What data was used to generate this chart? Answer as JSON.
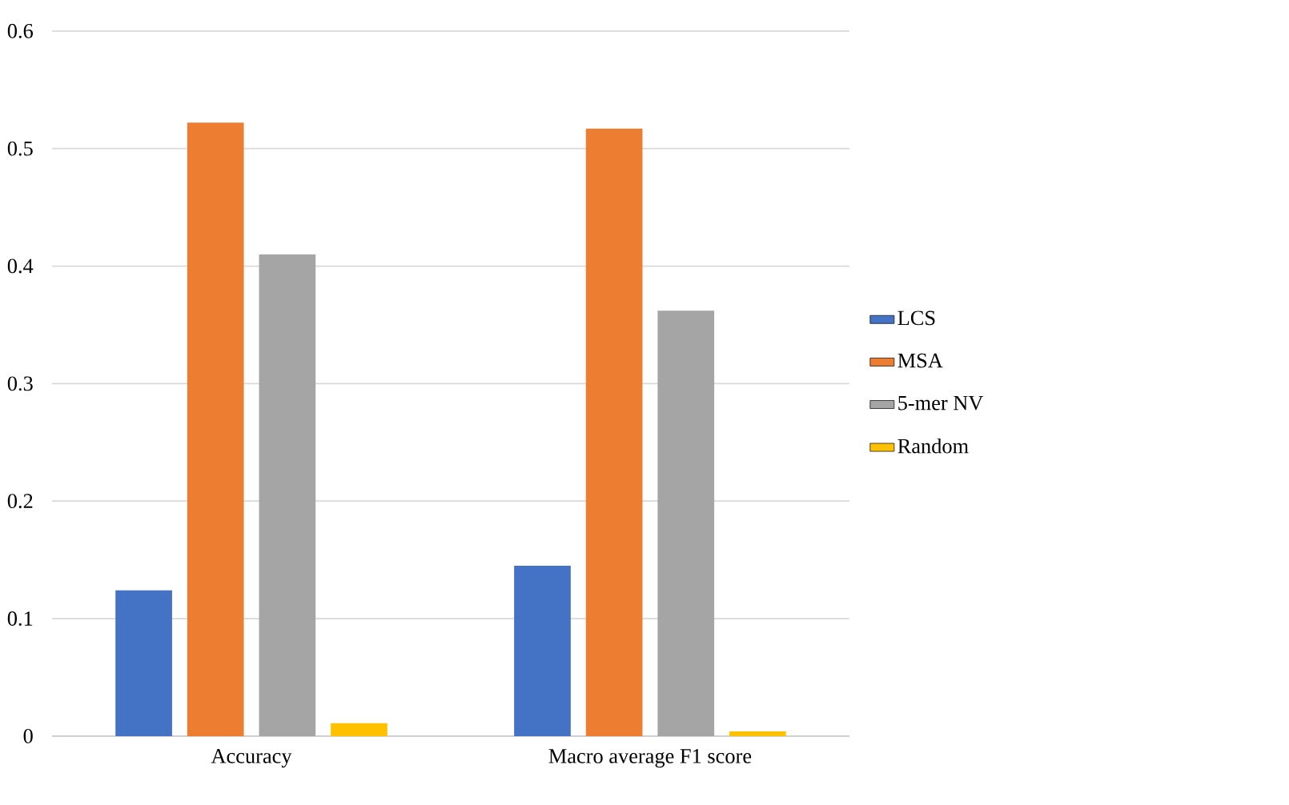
{
  "chart_data": {
    "type": "bar",
    "categories": [
      "Accuracy",
      "Macro average F1 score"
    ],
    "series": [
      {
        "name": "LCS",
        "color": "#4472c4",
        "values": [
          0.124,
          0.145
        ]
      },
      {
        "name": "MSA",
        "color": "#ed7d31",
        "values": [
          0.522,
          0.517
        ]
      },
      {
        "name": "5-mer NV",
        "color": "#a5a5a5",
        "values": [
          0.41,
          0.362
        ]
      },
      {
        "name": "Random",
        "color": "#ffc000",
        "values": [
          0.011,
          0.004
        ]
      }
    ],
    "ylim": [
      0,
      0.6
    ],
    "yticks": [
      0,
      0.1,
      0.2,
      0.3,
      0.4,
      0.5,
      0.6
    ],
    "grid": "y",
    "legend": "right"
  }
}
